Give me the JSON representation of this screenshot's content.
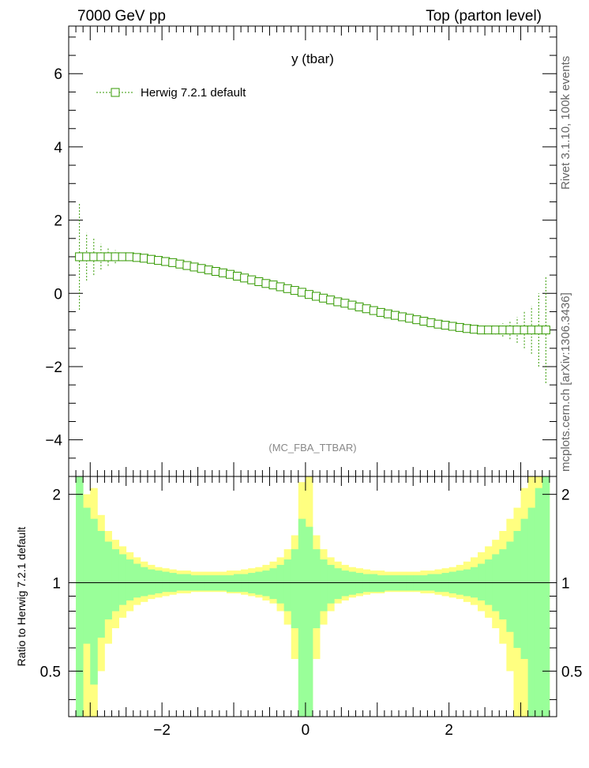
{
  "header": {
    "left": "7000 GeV pp",
    "right": "Top (parton level)"
  },
  "side_labels": {
    "rivet": "Rivet 3.1.10,  100k events",
    "mcplots": "mcplots.cern.ch [arXiv:1306.3436]"
  },
  "chart_data": [
    {
      "type": "line",
      "title": "y (tbar)",
      "analysis_tag": "(MC_FBA_TTBAR)",
      "xlim": [
        -3.3,
        3.5
      ],
      "ylim": [
        -5,
        7.3
      ],
      "xticks": [
        -2,
        0,
        2
      ],
      "yticks": [
        -4,
        -2,
        0,
        2,
        4,
        6
      ],
      "ytick_labels": [
        "−4",
        "−2",
        "0",
        "2",
        "4",
        "6"
      ],
      "grid": false,
      "legend_position": "top-left",
      "series": [
        {
          "name": "Herwig 7.2.1 default",
          "color": "#339900",
          "marker": "open-square",
          "line": "dotted",
          "x": [
            -3.15,
            -3.05,
            -2.95,
            -2.85,
            -2.75,
            -2.65,
            -2.55,
            -2.45,
            -2.35,
            -2.25,
            -2.15,
            -2.05,
            -1.95,
            -1.85,
            -1.75,
            -1.65,
            -1.55,
            -1.45,
            -1.35,
            -1.25,
            -1.15,
            -1.05,
            -0.95,
            -0.85,
            -0.75,
            -0.65,
            -0.55,
            -0.45,
            -0.35,
            -0.25,
            -0.15,
            -0.05,
            0.05,
            0.15,
            0.25,
            0.35,
            0.45,
            0.55,
            0.65,
            0.75,
            0.85,
            0.95,
            1.05,
            1.15,
            1.25,
            1.35,
            1.45,
            1.55,
            1.65,
            1.75,
            1.85,
            1.95,
            2.05,
            2.15,
            2.25,
            2.35,
            2.45,
            2.55,
            2.65,
            2.75,
            2.85,
            2.95,
            3.05,
            3.15,
            3.25,
            3.35
          ],
          "y": [
            1.0,
            1.0,
            1.0,
            1.0,
            1.0,
            1.0,
            1.0,
            1.0,
            0.98,
            0.96,
            0.93,
            0.9,
            0.87,
            0.84,
            0.8,
            0.76,
            0.72,
            0.68,
            0.64,
            0.6,
            0.56,
            0.52,
            0.47,
            0.42,
            0.37,
            0.32,
            0.27,
            0.23,
            0.18,
            0.13,
            0.08,
            0.03,
            -0.03,
            -0.08,
            -0.13,
            -0.18,
            -0.23,
            -0.27,
            -0.32,
            -0.37,
            -0.42,
            -0.47,
            -0.52,
            -0.56,
            -0.6,
            -0.64,
            -0.68,
            -0.72,
            -0.76,
            -0.8,
            -0.84,
            -0.87,
            -0.9,
            -0.93,
            -0.96,
            -0.98,
            -1.0,
            -1.0,
            -1.0,
            -1.0,
            -1.0,
            -1.0,
            -1.0,
            -1.0,
            -1.0,
            -1.0
          ],
          "yerr": [
            1.45,
            0.65,
            0.5,
            0.35,
            0.25,
            0.18,
            0.12,
            0.08,
            0.06,
            0.05,
            0.04,
            0.04,
            0.03,
            0.03,
            0.03,
            0.03,
            0.03,
            0.03,
            0.03,
            0.03,
            0.03,
            0.03,
            0.03,
            0.03,
            0.03,
            0.03,
            0.03,
            0.03,
            0.03,
            0.03,
            0.03,
            0.03,
            0.03,
            0.03,
            0.03,
            0.03,
            0.03,
            0.03,
            0.03,
            0.03,
            0.03,
            0.03,
            0.03,
            0.03,
            0.03,
            0.03,
            0.03,
            0.03,
            0.03,
            0.03,
            0.03,
            0.03,
            0.03,
            0.04,
            0.04,
            0.05,
            0.06,
            0.08,
            0.12,
            0.18,
            0.25,
            0.35,
            0.5,
            0.65,
            1.0,
            1.45
          ]
        }
      ]
    },
    {
      "type": "area",
      "ylabel": "Ratio to Herwig 7.2.1 default",
      "xlim": [
        -3.3,
        3.5
      ],
      "ylim": [
        0.35,
        2.3
      ],
      "xticks": [
        -2,
        0,
        2
      ],
      "xtick_labels": [
        "−2",
        "0",
        "2"
      ],
      "yticks": [
        0.5,
        1,
        2
      ],
      "ytick_labels": [
        "0.5",
        "1",
        "2"
      ],
      "reference_line": 1,
      "bands": [
        {
          "name": "outer uncertainty",
          "color": "#ffff80"
        },
        {
          "name": "inner uncertainty",
          "color": "#99ff99"
        }
      ],
      "x_edges_start": -3.2,
      "bin_width": 0.1,
      "inner_up": [
        2.3,
        1.8,
        1.65,
        1.5,
        1.38,
        1.3,
        1.25,
        1.2,
        1.16,
        1.13,
        1.11,
        1.1,
        1.09,
        1.08,
        1.07,
        1.07,
        1.06,
        1.06,
        1.06,
        1.06,
        1.06,
        1.06,
        1.07,
        1.07,
        1.08,
        1.09,
        1.1,
        1.12,
        1.15,
        1.2,
        1.3,
        1.65,
        1.55,
        1.3,
        1.2,
        1.15,
        1.12,
        1.1,
        1.09,
        1.08,
        1.07,
        1.07,
        1.06,
        1.06,
        1.06,
        1.06,
        1.06,
        1.06,
        1.06,
        1.07,
        1.07,
        1.08,
        1.09,
        1.1,
        1.11,
        1.13,
        1.16,
        1.2,
        1.25,
        1.3,
        1.38,
        1.5,
        1.65,
        1.8,
        2.1,
        2.3
      ],
      "outer_up": [
        2.3,
        2.0,
        2.1,
        1.7,
        1.5,
        1.4,
        1.33,
        1.27,
        1.22,
        1.18,
        1.15,
        1.13,
        1.12,
        1.11,
        1.1,
        1.1,
        1.09,
        1.09,
        1.09,
        1.09,
        1.09,
        1.1,
        1.1,
        1.11,
        1.12,
        1.13,
        1.15,
        1.18,
        1.22,
        1.3,
        1.45,
        2.2,
        2.3,
        1.45,
        1.3,
        1.22,
        1.18,
        1.15,
        1.13,
        1.12,
        1.11,
        1.1,
        1.1,
        1.09,
        1.09,
        1.09,
        1.09,
        1.09,
        1.1,
        1.1,
        1.11,
        1.12,
        1.13,
        1.15,
        1.18,
        1.22,
        1.27,
        1.33,
        1.4,
        1.5,
        1.65,
        1.8,
        2.1,
        2.3,
        2.3,
        2.3
      ],
      "inner_down": [
        0.3,
        0.62,
        0.45,
        0.65,
        0.75,
        0.8,
        0.84,
        0.87,
        0.89,
        0.9,
        0.91,
        0.92,
        0.93,
        0.93,
        0.94,
        0.94,
        0.94,
        0.94,
        0.94,
        0.94,
        0.94,
        0.93,
        0.93,
        0.93,
        0.92,
        0.91,
        0.9,
        0.88,
        0.85,
        0.8,
        0.7,
        0.3,
        0.3,
        0.7,
        0.8,
        0.85,
        0.88,
        0.9,
        0.91,
        0.92,
        0.93,
        0.93,
        0.93,
        0.94,
        0.94,
        0.94,
        0.94,
        0.94,
        0.94,
        0.94,
        0.93,
        0.93,
        0.92,
        0.91,
        0.9,
        0.89,
        0.87,
        0.84,
        0.8,
        0.75,
        0.68,
        0.6,
        0.55,
        0.3,
        0.3,
        0.3
      ],
      "outer_down": [
        0.3,
        0.3,
        0.3,
        0.5,
        0.62,
        0.7,
        0.76,
        0.8,
        0.84,
        0.86,
        0.88,
        0.89,
        0.9,
        0.91,
        0.92,
        0.92,
        0.93,
        0.93,
        0.93,
        0.93,
        0.93,
        0.92,
        0.92,
        0.91,
        0.9,
        0.89,
        0.87,
        0.85,
        0.8,
        0.72,
        0.55,
        0.3,
        0.3,
        0.55,
        0.72,
        0.8,
        0.85,
        0.87,
        0.89,
        0.9,
        0.91,
        0.92,
        0.92,
        0.93,
        0.93,
        0.93,
        0.93,
        0.93,
        0.92,
        0.92,
        0.91,
        0.9,
        0.89,
        0.88,
        0.86,
        0.84,
        0.8,
        0.76,
        0.7,
        0.62,
        0.5,
        0.3,
        0.3,
        0.3,
        0.3,
        0.3
      ]
    }
  ]
}
